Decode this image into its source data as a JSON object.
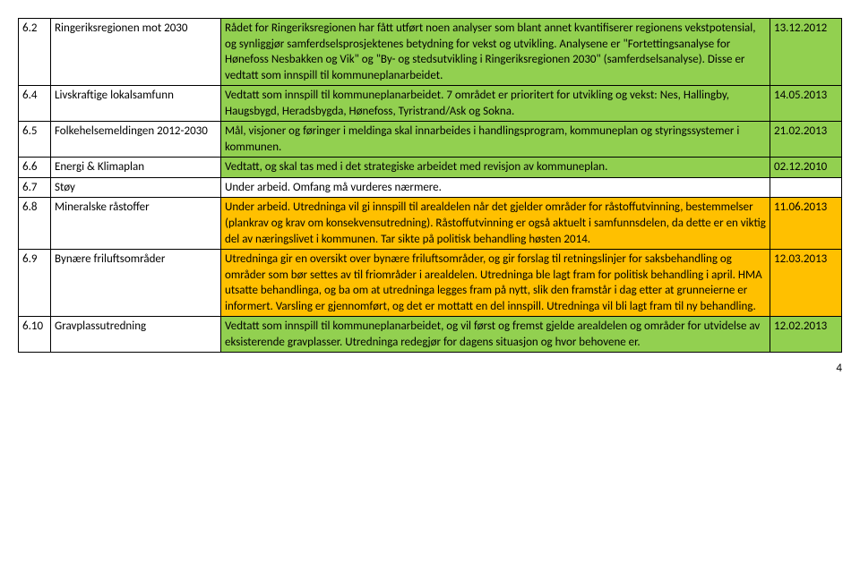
{
  "rows": [
    {
      "num": "6.2",
      "title": "Ringeriksregionen mot 2030",
      "desc": "Rådet for Ringeriksregionen har fått utført noen analyser som blant annet kvantifiserer regionens vekstpotensial, og synliggjør samferdselsprosjektenes betydning for vekst og utvikling. Analysene er \"Fortettingsanalyse for Hønefoss Nesbakken og Vik\" og \"By- og stedsutvikling i Ringeriksregionen 2030\" (samferdselsanalyse). Disse er vedtatt som innspill til kommuneplanarbeidet.",
      "date": "13.12.2012",
      "bg": "bg-green"
    },
    {
      "num": "6.4",
      "title": "Livskraftige lokalsamfunn",
      "desc": "Vedtatt som innspill til kommuneplanarbeidet. 7 området er prioritert for utvikling og vekst: Nes, Hallingby, Haugsbygd, Heradsbygda, Hønefoss, Tyristrand/Ask og Sokna.",
      "date": "14.05.2013",
      "bg": "bg-green"
    },
    {
      "num": "6.5",
      "title": "Folkehelsemeldingen 2012-2030",
      "desc": "Mål, visjoner og føringer i meldinga skal innarbeides i handlingsprogram, kommuneplan og styringssystemer i kommunen.",
      "date": "21.02.2013",
      "bg": "bg-green"
    },
    {
      "num": "6.6",
      "title": "Energi & Klimaplan",
      "desc": "Vedtatt, og skal tas med i det strategiske arbeidet med revisjon av kommuneplan.",
      "date": "02.12.2010",
      "bg": "bg-green"
    },
    {
      "num": "6.7",
      "title": "Støy",
      "desc": "Under arbeid. Omfang må vurderes nærmere.",
      "date": "",
      "bg": ""
    },
    {
      "num": "6.8",
      "title": "Mineralske råstoffer",
      "desc": "Under arbeid. Utredninga vil gi innspill til arealdelen når det gjelder områder for råstoffutvinning, bestemmelser (plankrav og krav om konsekvensutredning). Råstoffutvinning er også aktuelt i samfunnsdelen, da dette er en viktig del av næringslivet i kommunen. Tar sikte på politisk behandling høsten 2014.",
      "date": "11.06.2013",
      "bg": "bg-orange"
    },
    {
      "num": "6.9",
      "title": "Bynære friluftsområder",
      "desc": "Utredninga gir en oversikt over bynære friluftsområder, og gir forslag til retningslinjer for saksbehandling og områder som bør settes av til friområder i arealdelen. Utredninga ble lagt fram for politisk behandling i april. HMA utsatte behandlinga, og ba om at utredninga legges fram på nytt, slik den framstår i dag etter at grunneierne er informert. Varsling er gjennomført, og det er mottatt en del innspill. Utredninga vil bli lagt fram til ny behandling.",
      "date": "12.03.2013",
      "bg": "bg-orange"
    },
    {
      "num": "6.10",
      "title": "Gravplassutredning",
      "desc": "Vedtatt som innspill til kommuneplanarbeidet, og vil først og fremst gjelde arealdelen og områder for utvidelse av eksisterende gravplasser. Utredninga redegjør for dagens situasjon og hvor behovene er.",
      "date": "12.02.2013",
      "bg": "bg-green"
    }
  ],
  "pageNumber": "4"
}
